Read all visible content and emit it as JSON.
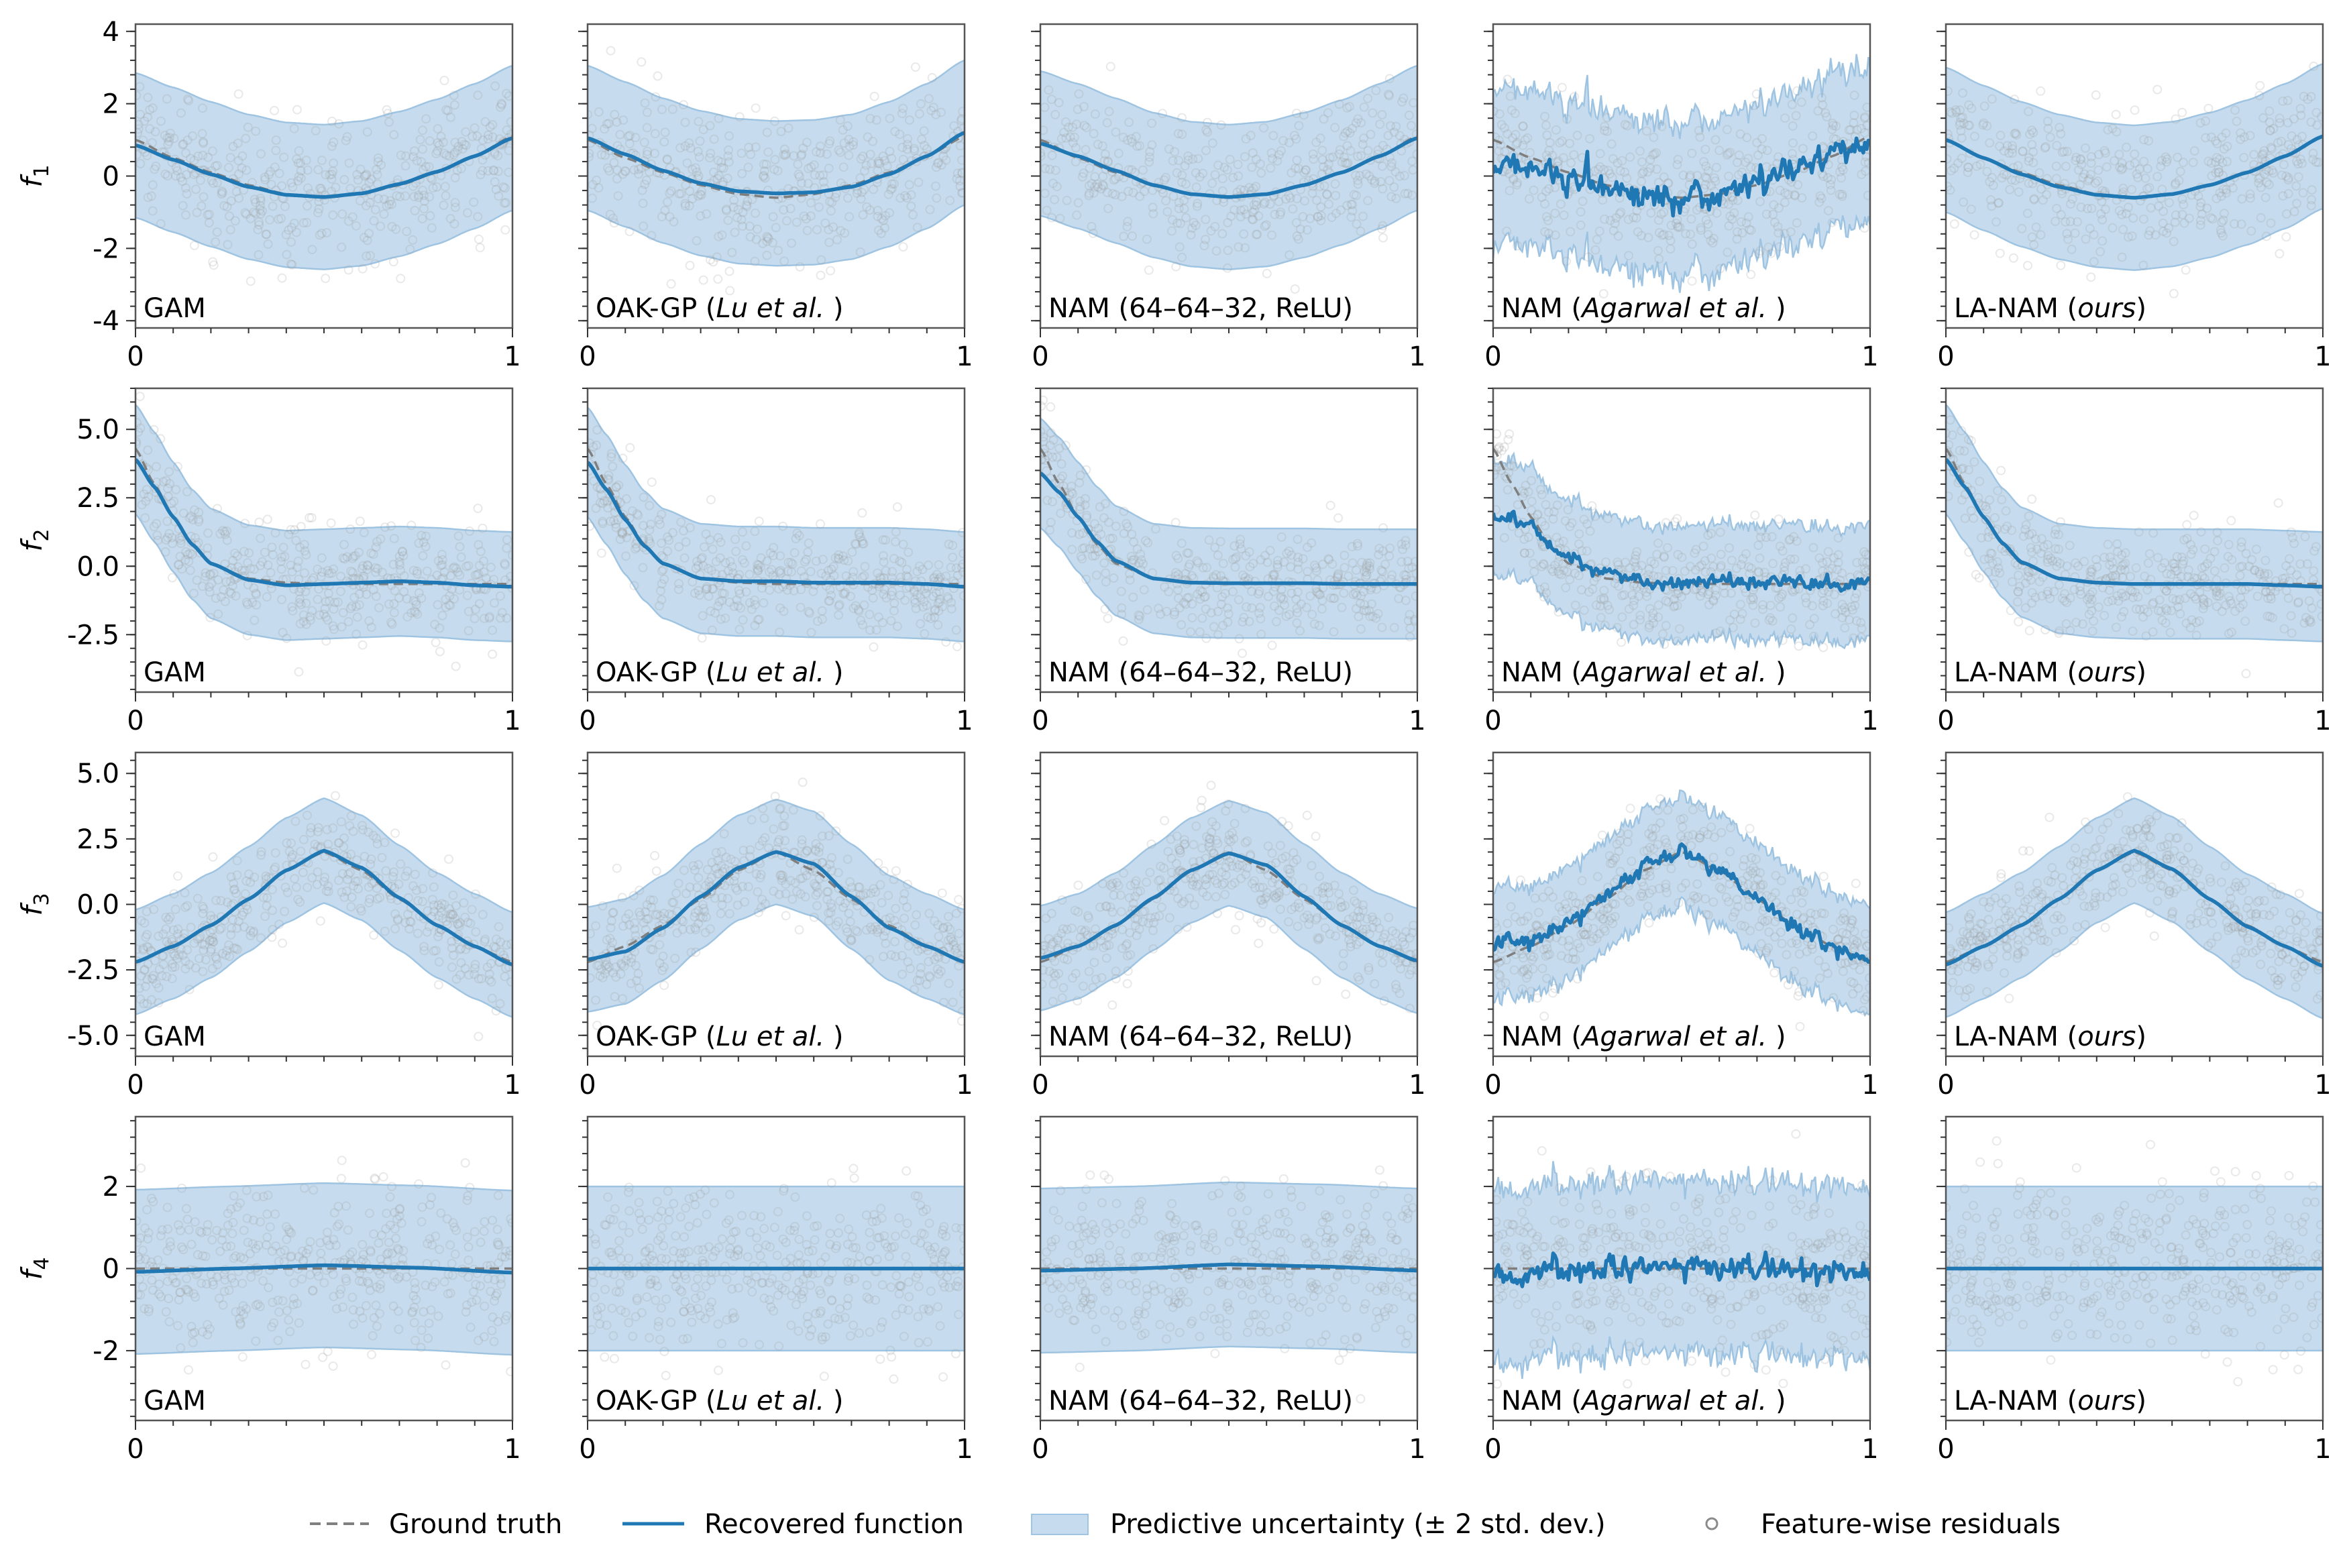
{
  "figure": {
    "row_labels": [
      "f1",
      "f2",
      "f3",
      "f4"
    ],
    "column_labels": [
      "GAM",
      "OAK-GP (Lu et al. )",
      "NAM (64–64–32, ReLU)",
      "NAM (Agarwal et al. )",
      "LA-NAM (ours)"
    ],
    "column_label_parts": [
      [
        {
          "t": "GAM",
          "i": false
        }
      ],
      [
        {
          "t": "OAK-GP (",
          "i": false
        },
        {
          "t": "Lu et al.",
          "i": true
        },
        {
          "t": " )",
          "i": false
        }
      ],
      [
        {
          "t": "NAM (64–64–32, ReLU)",
          "i": false
        }
      ],
      [
        {
          "t": "NAM (",
          "i": false
        },
        {
          "t": "Agarwal et al.",
          "i": true
        },
        {
          "t": " )",
          "i": false
        }
      ],
      [
        {
          "t": "LA-NAM (",
          "i": false
        },
        {
          "t": "ours",
          "i": true
        },
        {
          "t": ")",
          "i": false
        }
      ]
    ]
  },
  "legend": {
    "ground_truth": "Ground truth",
    "recovered": "Recovered function",
    "uncertainty": "Predictive uncertainty (± 2 std. dev.)",
    "residuals": "Feature-wise residuals"
  },
  "colors": {
    "recovered": "#1f77b4",
    "band": "#c6dcee",
    "band_edge": "#9fc4e2",
    "ground_truth": "#7f7f7f",
    "residual": "#9a9a9a",
    "axis": "#555555"
  },
  "chart_data": [
    {
      "type": "line",
      "row": 1,
      "ylabel": "f1",
      "xlim": [
        0,
        1
      ],
      "ylim": [
        -4.2,
        4.2
      ],
      "xticks": [
        0,
        1
      ],
      "xtick_labels": [
        "0",
        "1"
      ],
      "yticks": [
        4,
        2,
        0,
        -2,
        -4
      ],
      "ytick_labels": [
        "4",
        "2",
        "0",
        "-2",
        "-4"
      ],
      "band_halfwidth": 2.0,
      "residual_sd": 1.0,
      "ground_truth": {
        "x": [
          0,
          0.1,
          0.2,
          0.3,
          0.4,
          0.5,
          0.6,
          0.7,
          0.8,
          0.9,
          1
        ],
        "y": [
          1.0,
          0.5,
          0.1,
          -0.25,
          -0.5,
          -0.6,
          -0.5,
          -0.25,
          0.1,
          0.55,
          1.1
        ]
      },
      "panels": [
        {
          "model": "GAM",
          "x": [
            0,
            0.1,
            0.2,
            0.3,
            0.4,
            0.5,
            0.6,
            0.7,
            0.8,
            0.9,
            1
          ],
          "y": [
            0.85,
            0.45,
            0.05,
            -0.3,
            -0.52,
            -0.58,
            -0.48,
            -0.22,
            0.12,
            0.55,
            1.05
          ],
          "noise": 0
        },
        {
          "model": "OAK-GP (Lu et al. )",
          "x": [
            0,
            0.1,
            0.2,
            0.3,
            0.4,
            0.5,
            0.6,
            0.7,
            0.8,
            0.9,
            1
          ],
          "y": [
            1.05,
            0.6,
            0.15,
            -0.2,
            -0.42,
            -0.48,
            -0.45,
            -0.3,
            0.05,
            0.55,
            1.2
          ],
          "noise": 0
        },
        {
          "model": "NAM (64–64–32, ReLU)",
          "x": [
            0,
            0.1,
            0.2,
            0.3,
            0.4,
            0.5,
            0.6,
            0.7,
            0.8,
            0.9,
            1
          ],
          "y": [
            0.9,
            0.55,
            0.15,
            -0.25,
            -0.5,
            -0.58,
            -0.5,
            -0.25,
            0.1,
            0.55,
            1.05
          ],
          "noise": 0
        },
        {
          "model": "NAM (Agarwal et al. )",
          "x": [
            0,
            0.1,
            0.2,
            0.3,
            0.4,
            0.5,
            0.6,
            0.7,
            0.8,
            0.9,
            1
          ],
          "y": [
            0.3,
            0.3,
            0.05,
            -0.3,
            -0.55,
            -0.65,
            -0.5,
            -0.15,
            0.25,
            0.65,
            1.0
          ],
          "noise": 0.18
        },
        {
          "model": "LA-NAM (ours)",
          "x": [
            0,
            0.1,
            0.2,
            0.3,
            0.4,
            0.5,
            0.6,
            0.7,
            0.8,
            0.9,
            1
          ],
          "y": [
            1.0,
            0.5,
            0.05,
            -0.3,
            -0.52,
            -0.6,
            -0.5,
            -0.25,
            0.1,
            0.55,
            1.1
          ],
          "noise": 0
        }
      ]
    },
    {
      "type": "line",
      "row": 2,
      "ylabel": "f2",
      "xlim": [
        0,
        1
      ],
      "ylim": [
        -4.6,
        6.5
      ],
      "xticks": [
        0,
        1
      ],
      "xtick_labels": [
        "0",
        "1"
      ],
      "yticks": [
        5,
        2.5,
        0,
        -2.5
      ],
      "ytick_labels": [
        "5.0",
        "2.5",
        "0.0",
        "-2.5"
      ],
      "band_halfwidth": 2.0,
      "residual_sd": 1.0,
      "ground_truth": {
        "x": [
          0,
          0.05,
          0.1,
          0.15,
          0.2,
          0.3,
          0.4,
          0.5,
          0.6,
          0.7,
          0.8,
          0.9,
          1
        ],
        "y": [
          4.3,
          3.0,
          1.8,
          0.8,
          0.1,
          -0.45,
          -0.6,
          -0.65,
          -0.65,
          -0.65,
          -0.65,
          -0.65,
          -0.65
        ]
      },
      "panels": [
        {
          "model": "GAM",
          "x": [
            0,
            0.05,
            0.1,
            0.15,
            0.2,
            0.3,
            0.4,
            0.5,
            0.6,
            0.7,
            0.8,
            0.9,
            1
          ],
          "y": [
            3.9,
            2.9,
            1.8,
            0.8,
            0.1,
            -0.5,
            -0.7,
            -0.65,
            -0.6,
            -0.55,
            -0.6,
            -0.7,
            -0.75
          ],
          "noise": 0
        },
        {
          "model": "OAK-GP (Lu et al. )",
          "x": [
            0,
            0.05,
            0.1,
            0.15,
            0.2,
            0.3,
            0.4,
            0.5,
            0.6,
            0.7,
            0.8,
            0.9,
            1
          ],
          "y": [
            3.8,
            2.8,
            1.7,
            0.75,
            0.1,
            -0.45,
            -0.55,
            -0.55,
            -0.6,
            -0.6,
            -0.6,
            -0.65,
            -0.75
          ],
          "noise": 0
        },
        {
          "model": "NAM (64–64–32, ReLU)",
          "x": [
            0,
            0.05,
            0.1,
            0.15,
            0.2,
            0.3,
            0.4,
            0.5,
            0.6,
            0.7,
            0.8,
            0.9,
            1
          ],
          "y": [
            3.4,
            2.7,
            1.8,
            0.9,
            0.2,
            -0.45,
            -0.6,
            -0.62,
            -0.62,
            -0.62,
            -0.65,
            -0.65,
            -0.65
          ],
          "noise": 0
        },
        {
          "model": "NAM (Agarwal et al. )",
          "x": [
            0,
            0.05,
            0.1,
            0.15,
            0.2,
            0.3,
            0.4,
            0.5,
            0.6,
            0.7,
            0.8,
            0.9,
            1
          ],
          "y": [
            1.7,
            1.8,
            1.5,
            0.9,
            0.3,
            -0.3,
            -0.55,
            -0.6,
            -0.55,
            -0.6,
            -0.6,
            -0.65,
            -0.6
          ],
          "noise": 0.13
        },
        {
          "model": "LA-NAM (ours)",
          "x": [
            0,
            0.05,
            0.1,
            0.15,
            0.2,
            0.3,
            0.4,
            0.5,
            0.6,
            0.7,
            0.8,
            0.9,
            1
          ],
          "y": [
            3.9,
            2.9,
            1.8,
            0.85,
            0.15,
            -0.45,
            -0.6,
            -0.65,
            -0.65,
            -0.65,
            -0.65,
            -0.7,
            -0.75
          ],
          "noise": 0
        }
      ]
    },
    {
      "type": "line",
      "row": 3,
      "ylabel": "f3",
      "xlim": [
        0,
        1
      ],
      "ylim": [
        -5.8,
        5.8
      ],
      "xticks": [
        0,
        1
      ],
      "xtick_labels": [
        "0",
        "1"
      ],
      "yticks": [
        5,
        2.5,
        0,
        -2.5,
        -5
      ],
      "ytick_labels": [
        "5.0",
        "2.5",
        "0.0",
        "-2.5",
        "-5.0"
      ],
      "band_halfwidth": 2.0,
      "residual_sd": 1.0,
      "ground_truth": {
        "x": [
          0,
          0.1,
          0.2,
          0.3,
          0.4,
          0.5,
          0.6,
          0.7,
          0.8,
          0.9,
          1
        ],
        "y": [
          -2.2,
          -1.6,
          -0.8,
          0.2,
          1.3,
          2.0,
          1.3,
          0.2,
          -0.8,
          -1.6,
          -2.2
        ]
      },
      "panels": [
        {
          "model": "GAM",
          "x": [
            0,
            0.1,
            0.2,
            0.3,
            0.4,
            0.5,
            0.6,
            0.7,
            0.8,
            0.9,
            1
          ],
          "y": [
            -2.2,
            -1.6,
            -0.8,
            0.2,
            1.3,
            2.05,
            1.4,
            0.25,
            -0.8,
            -1.6,
            -2.3
          ],
          "noise": 0
        },
        {
          "model": "OAK-GP (Lu et al. )",
          "x": [
            0,
            0.1,
            0.2,
            0.3,
            0.4,
            0.5,
            0.6,
            0.7,
            0.8,
            0.9,
            1
          ],
          "y": [
            -2.1,
            -1.8,
            -0.9,
            0.3,
            1.4,
            2.0,
            1.55,
            0.3,
            -0.9,
            -1.6,
            -2.2
          ],
          "noise": 0
        },
        {
          "model": "NAM (64–64–32, ReLU)",
          "x": [
            0,
            0.1,
            0.2,
            0.3,
            0.4,
            0.5,
            0.6,
            0.7,
            0.8,
            0.9,
            1
          ],
          "y": [
            -2.05,
            -1.6,
            -0.8,
            0.25,
            1.3,
            1.95,
            1.5,
            0.3,
            -0.8,
            -1.6,
            -2.15
          ],
          "noise": 0
        },
        {
          "model": "NAM (Agarwal et al. )",
          "x": [
            0,
            0.1,
            0.2,
            0.3,
            0.4,
            0.5,
            0.6,
            0.7,
            0.8,
            0.9,
            1
          ],
          "y": [
            -1.4,
            -1.45,
            -0.7,
            0.4,
            1.5,
            2.1,
            1.3,
            0.2,
            -0.9,
            -1.7,
            -2.1
          ],
          "noise": 0.15
        },
        {
          "model": "LA-NAM (ours)",
          "x": [
            0,
            0.1,
            0.2,
            0.3,
            0.4,
            0.5,
            0.6,
            0.7,
            0.8,
            0.9,
            1
          ],
          "y": [
            -2.3,
            -1.6,
            -0.8,
            0.2,
            1.3,
            2.05,
            1.35,
            0.2,
            -0.85,
            -1.6,
            -2.35
          ],
          "noise": 0
        }
      ]
    },
    {
      "type": "line",
      "row": 4,
      "ylabel": "f4",
      "xlim": [
        0,
        1
      ],
      "ylim": [
        -3.7,
        3.7
      ],
      "xticks": [
        0,
        1
      ],
      "xtick_labels": [
        "0",
        "1"
      ],
      "yticks": [
        2,
        0,
        -2
      ],
      "ytick_labels": [
        "2",
        "0",
        "-2"
      ],
      "band_halfwidth": 2.0,
      "residual_sd": 1.0,
      "ground_truth": {
        "x": [
          0,
          1
        ],
        "y": [
          0,
          0
        ]
      },
      "panels": [
        {
          "model": "GAM",
          "x": [
            0,
            0.25,
            0.5,
            0.75,
            1
          ],
          "y": [
            -0.08,
            0.0,
            0.08,
            0.02,
            -0.1
          ],
          "noise": 0
        },
        {
          "model": "OAK-GP (Lu et al. )",
          "x": [
            0,
            1
          ],
          "y": [
            0.0,
            0.0
          ],
          "noise": 0
        },
        {
          "model": "NAM (64–64–32, ReLU)",
          "x": [
            0,
            0.25,
            0.5,
            0.75,
            1
          ],
          "y": [
            -0.05,
            0.0,
            0.1,
            0.05,
            -0.05
          ],
          "noise": 0
        },
        {
          "model": "NAM (Agarwal et al. )",
          "x": [
            0,
            0.25,
            0.5,
            0.75,
            1
          ],
          "y": [
            -0.2,
            -0.05,
            0.05,
            0.0,
            -0.1
          ],
          "noise": 0.15
        },
        {
          "model": "LA-NAM (ours)",
          "x": [
            0,
            1
          ],
          "y": [
            0.0,
            0.0
          ],
          "noise": 0
        }
      ]
    }
  ]
}
